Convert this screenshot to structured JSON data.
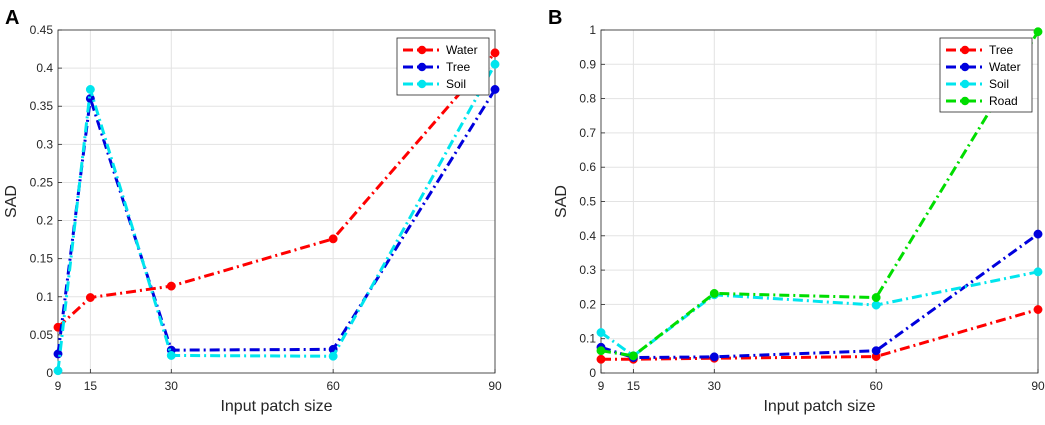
{
  "chart_data": [
    {
      "panel_label": "A",
      "type": "line",
      "x": [
        9,
        15,
        30,
        60,
        90
      ],
      "xlabel": "Input patch size",
      "ylabel": "SAD",
      "xlim": [
        9,
        90
      ],
      "ylim": [
        0,
        0.45
      ],
      "xticks": [
        9,
        15,
        30,
        60,
        90
      ],
      "yticks": [
        0,
        0.05,
        0.1,
        0.15,
        0.2,
        0.25,
        0.3,
        0.35,
        0.4,
        0.45
      ],
      "ytick_labels": [
        "0",
        "0.05",
        "0.1",
        "0.15",
        "0.2",
        "0.25",
        "0.3",
        "0.35",
        "0.4",
        "0.45"
      ],
      "grid": true,
      "legend_position": "top-right",
      "series": [
        {
          "name": "Water",
          "color": "#ff0000",
          "values": [
            0.06,
            0.099,
            0.114,
            0.176,
            0.42
          ]
        },
        {
          "name": "Tree",
          "color": "#0000dd",
          "values": [
            0.025,
            0.36,
            0.03,
            0.031,
            0.372
          ]
        },
        {
          "name": "Soil",
          "color": "#00e5ee",
          "values": [
            0.003,
            0.372,
            0.023,
            0.022,
            0.405
          ]
        }
      ]
    },
    {
      "panel_label": "B",
      "type": "line",
      "x": [
        9,
        15,
        30,
        60,
        90
      ],
      "xlabel": "Input patch size",
      "ylabel": "SAD",
      "xlim": [
        9,
        90
      ],
      "ylim": [
        0,
        1
      ],
      "xticks": [
        9,
        15,
        30,
        60,
        90
      ],
      "yticks": [
        0,
        0.1,
        0.2,
        0.3,
        0.4,
        0.5,
        0.6,
        0.7,
        0.8,
        0.9,
        1
      ],
      "ytick_labels": [
        "0",
        "0.1",
        "0.2",
        "0.3",
        "0.4",
        "0.5",
        "0.6",
        "0.7",
        "0.8",
        "0.9",
        "1"
      ],
      "grid": true,
      "legend_position": "top-right",
      "series": [
        {
          "name": "Tree",
          "color": "#ff0000",
          "values": [
            0.04,
            0.04,
            0.043,
            0.048,
            0.185
          ]
        },
        {
          "name": "Water",
          "color": "#0000dd",
          "values": [
            0.075,
            0.045,
            0.047,
            0.065,
            0.405
          ]
        },
        {
          "name": "Soil",
          "color": "#00e5ee",
          "values": [
            0.118,
            0.05,
            0.228,
            0.198,
            0.295
          ]
        },
        {
          "name": "Road",
          "color": "#00dd00",
          "values": [
            0.065,
            0.05,
            0.232,
            0.22,
            0.995
          ]
        }
      ]
    }
  ]
}
